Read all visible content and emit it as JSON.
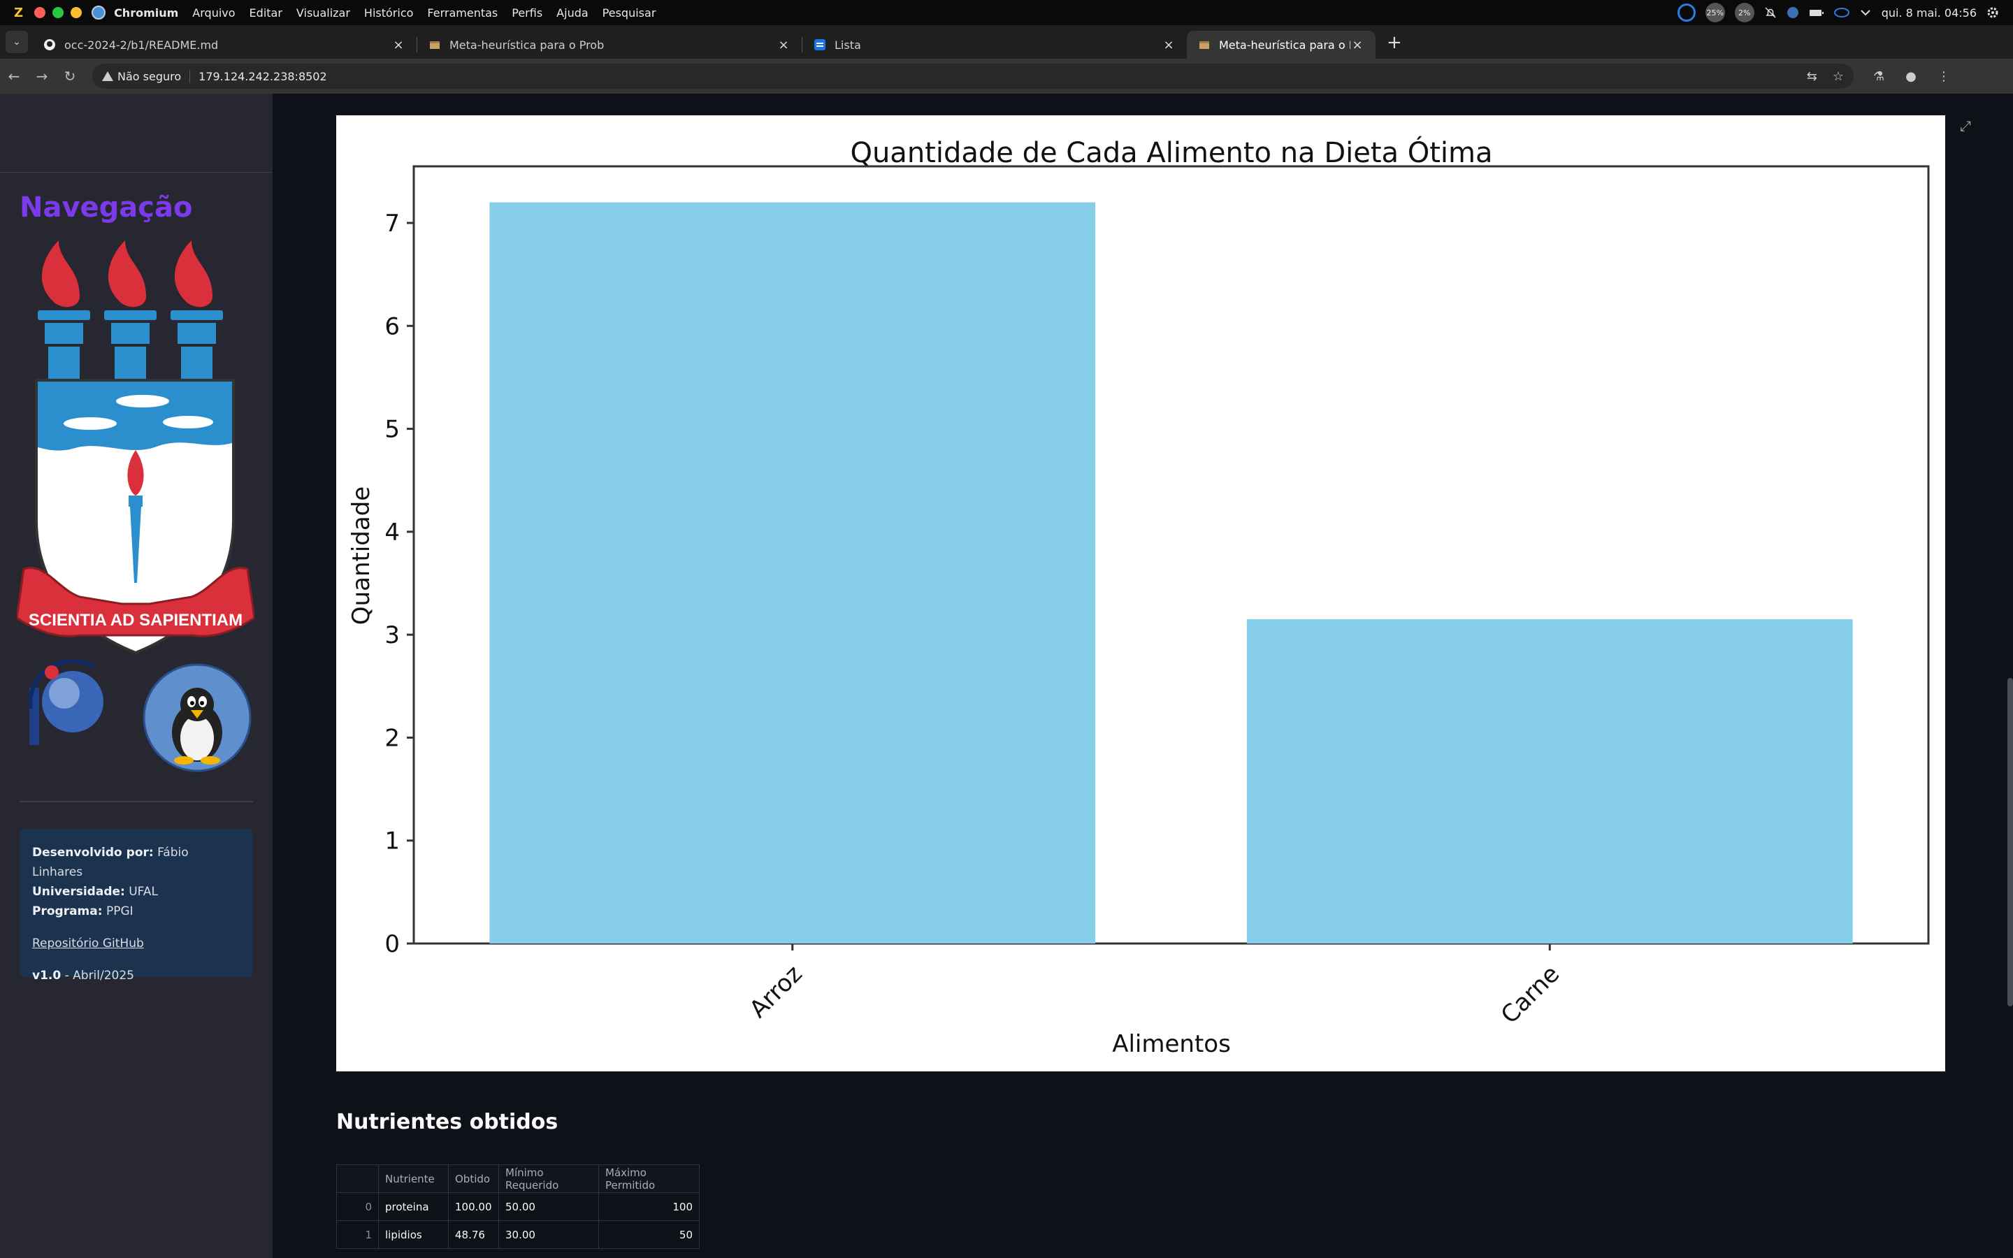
{
  "os_bar": {
    "logo": "Z",
    "app_name": "Chromium",
    "menu": [
      "Arquivo",
      "Editar",
      "Visualizar",
      "Histórico",
      "Ferramentas",
      "Perfis",
      "Ajuda",
      "Pesquisar"
    ],
    "cpu_1": "25%",
    "cpu_2": "2%",
    "clock": "qui. 8 mai. 04:56"
  },
  "tabs": [
    {
      "title": "occ-2024-2/b1/README.md",
      "favicon": "github-icon"
    },
    {
      "title": "Meta-heurística para o Prob",
      "favicon": "box-icon"
    },
    {
      "title": "Lista",
      "favicon": "list-icon"
    },
    {
      "title": "Meta-heurística para o Prob",
      "favicon": "box-icon",
      "active": true
    }
  ],
  "address": {
    "security_label": "Não seguro",
    "url": "179.124.242.238:8502"
  },
  "sidebar": {
    "title": "Navegação",
    "crest_motto": "SCIENTIA AD SAPIENTIAM",
    "info": {
      "dev_label": "Desenvolvido por:",
      "dev_value": "Fábio Linhares",
      "uni_label": "Universidade:",
      "uni_value": "UFAL",
      "prog_label": "Programa:",
      "prog_value": "PPGI",
      "repo_link": "Repositório GitHub",
      "version_label": "v1.0",
      "version_date": "- Abril/2025"
    }
  },
  "chart_data": {
    "type": "bar",
    "title": "Quantidade de Cada Alimento na Dieta Ótima",
    "xlabel": "Alimentos",
    "ylabel": "Quantidade",
    "categories": [
      "Arroz",
      "Carne"
    ],
    "values": [
      7.2,
      3.15
    ],
    "ylim": [
      0,
      7.55
    ],
    "yticks": [
      0,
      1,
      2,
      3,
      4,
      5,
      6,
      7
    ],
    "bar_color": "#87ceeb",
    "grid": false
  },
  "nutrients": {
    "title": "Nutrientes obtidos",
    "headers": [
      "",
      "Nutriente",
      "Obtido",
      "Mínimo Requerido",
      "Máximo Permitido"
    ],
    "rows": [
      {
        "idx": "0",
        "nutriente": "proteina",
        "obtido": "100.00",
        "minimo": "50.00",
        "maximo": "100"
      },
      {
        "idx": "1",
        "nutriente": "lipidios",
        "obtido": "48.76",
        "minimo": "30.00",
        "maximo": "50"
      }
    ]
  }
}
